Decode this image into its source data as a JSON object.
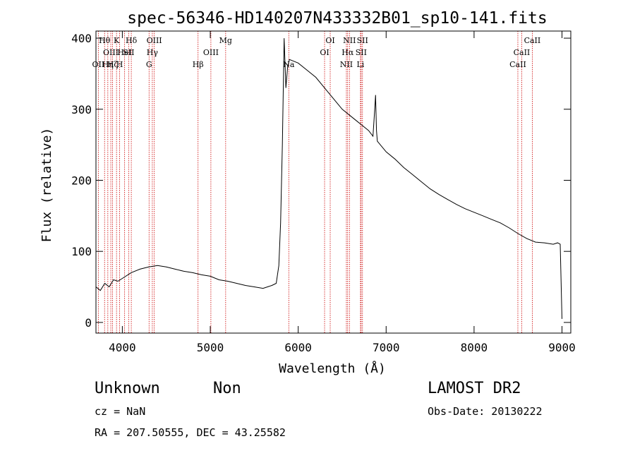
{
  "chart_data": {
    "type": "line",
    "title": "spec-56346-HD140207N433332B01_sp10-141.fits",
    "xlabel": "Wavelength (Å)",
    "ylabel": "Flux (relative)",
    "xlim": [
      3700,
      9100
    ],
    "ylim": [
      -15,
      410
    ],
    "x_ticks": [
      4000,
      5000,
      6000,
      7000,
      8000,
      9000
    ],
    "y_ticks": [
      0,
      100,
      200,
      300,
      400
    ],
    "grid": false,
    "line_color": "#000000",
    "marker_color": "#cc0000",
    "series": [
      {
        "x": [
          3700,
          3750,
          3800,
          3850,
          3900,
          3950,
          4000,
          4100,
          4200,
          4300,
          4400,
          4500,
          4600,
          4700,
          4800,
          4900,
          5000,
          5100,
          5200,
          5300,
          5400,
          5500,
          5600,
          5700,
          5750,
          5780,
          5800,
          5820,
          5840,
          5860,
          5880,
          5900,
          6000,
          6100,
          6200,
          6300,
          6400,
          6500,
          6600,
          6700,
          6800,
          6850,
          6870,
          6880,
          6890,
          6900,
          7000,
          7100,
          7200,
          7300,
          7400,
          7500,
          7600,
          7700,
          7800,
          7900,
          8000,
          8100,
          8200,
          8300,
          8400,
          8500,
          8600,
          8700,
          8800,
          8900,
          8950,
          8980,
          9000
        ],
        "y": [
          50,
          45,
          55,
          50,
          60,
          58,
          62,
          70,
          75,
          78,
          80,
          78,
          75,
          72,
          70,
          67,
          65,
          60,
          58,
          55,
          52,
          50,
          48,
          52,
          55,
          80,
          140,
          250,
          400,
          330,
          360,
          370,
          365,
          355,
          345,
          330,
          315,
          300,
          290,
          280,
          270,
          262,
          300,
          320,
          270,
          255,
          240,
          230,
          218,
          208,
          198,
          188,
          180,
          173,
          166,
          160,
          155,
          150,
          145,
          140,
          133,
          125,
          118,
          113,
          112,
          110,
          112,
          110,
          5
        ]
      }
    ],
    "lines": [
      {
        "x": 3727,
        "label": "OII",
        "row": 2
      },
      {
        "x": 3798,
        "label": "Hθ",
        "row": 0
      },
      {
        "x": 3835,
        "label": "Hη",
        "row": 2
      },
      {
        "x": 3869,
        "label": "OIII",
        "row": 1
      },
      {
        "x": 3889,
        "label": "Hζ",
        "row": 2
      },
      {
        "x": 3934,
        "label": "K",
        "row": 0
      },
      {
        "x": 3969,
        "label": "H",
        "row": 2
      },
      {
        "x": 4026,
        "label": "HeI",
        "row": 1
      },
      {
        "x": 4072,
        "label": "SII",
        "row": 1
      },
      {
        "x": 4102,
        "label": "Hδ",
        "row": 0
      },
      {
        "x": 4304,
        "label": "G",
        "row": 2
      },
      {
        "x": 4341,
        "label": "Hγ",
        "row": 1
      },
      {
        "x": 4363,
        "label": "OIII",
        "row": 0
      },
      {
        "x": 4861,
        "label": "Hβ",
        "row": 2
      },
      {
        "x": 5007,
        "label": "OIII",
        "row": 1
      },
      {
        "x": 5175,
        "label": "Mg",
        "row": 0
      },
      {
        "x": 5893,
        "label": "Na",
        "row": 2
      },
      {
        "x": 6300,
        "label": "OI",
        "row": 1
      },
      {
        "x": 6364,
        "label": "OI",
        "row": 0
      },
      {
        "x": 6548,
        "label": "NII",
        "row": 2
      },
      {
        "x": 6563,
        "label": "Hα",
        "row": 1
      },
      {
        "x": 6583,
        "label": "NII",
        "row": 0
      },
      {
        "x": 6708,
        "label": "Li",
        "row": 2
      },
      {
        "x": 6716,
        "label": "SII",
        "row": 1
      },
      {
        "x": 6731,
        "label": "SII",
        "row": 0
      },
      {
        "x": 8498,
        "label": "CaII",
        "row": 2
      },
      {
        "x": 8542,
        "label": "CaII",
        "row": 1
      },
      {
        "x": 8662,
        "label": "CaII",
        "row": 0
      }
    ]
  },
  "info": {
    "class": "Unknown",
    "subclass": "Non",
    "survey": "LAMOST DR2",
    "cz": "cz = NaN",
    "obs_date": "Obs-Date: 20130222",
    "radec": "RA = 207.50555, DEC =  43.25582"
  }
}
